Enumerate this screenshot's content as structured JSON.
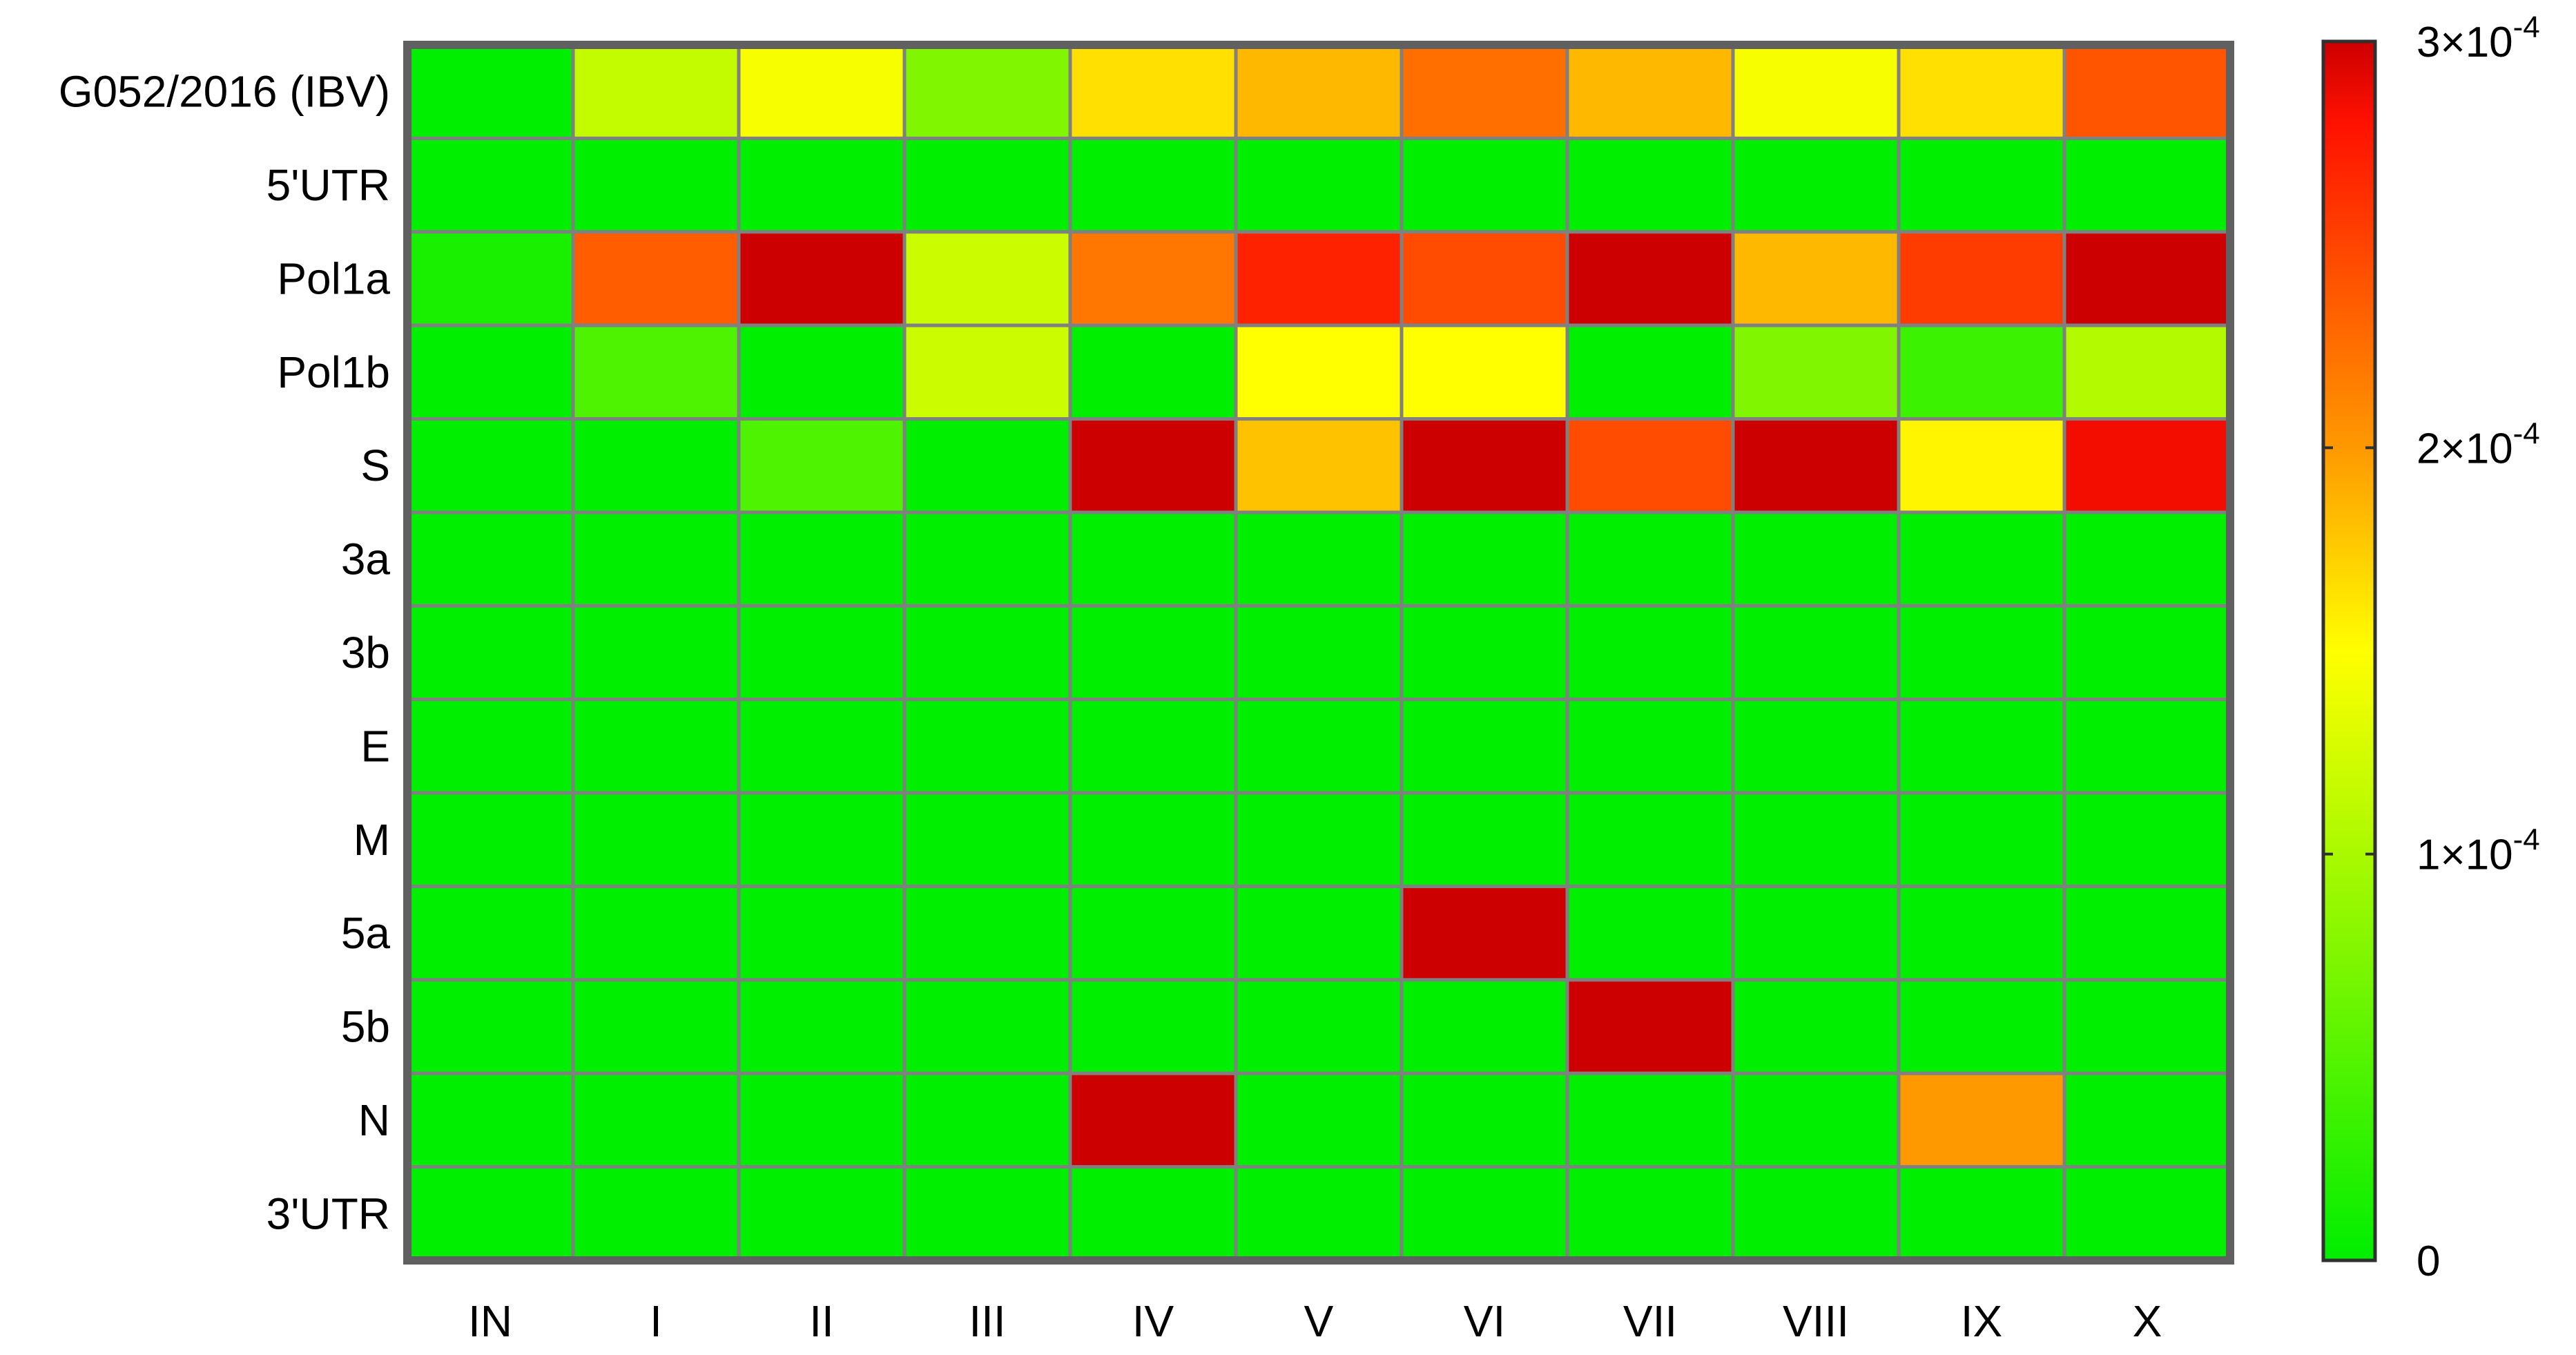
{
  "chart_data": {
    "type": "heatmap",
    "title": "",
    "xlabel": "",
    "ylabel": "",
    "x_categories": [
      "IN",
      "I",
      "II",
      "III",
      "IV",
      "V",
      "VI",
      "VII",
      "VIII",
      "IX",
      "X"
    ],
    "y_categories": [
      "G052/2016 (IBV)",
      "5'UTR",
      "Pol1a",
      "Pol1b",
      "S",
      "3a",
      "3b",
      "E",
      "M",
      "5a",
      "5b",
      "N",
      "3'UTR"
    ],
    "values_unit_scale": 0.0001,
    "values": [
      [
        0.0,
        1.15,
        1.45,
        0.75,
        1.65,
        1.85,
        2.25,
        1.85,
        1.45,
        1.65,
        2.4
      ],
      [
        0.0,
        0.0,
        0.0,
        0.0,
        0.0,
        0.0,
        0.0,
        0.0,
        0.0,
        0.0,
        0.0
      ],
      [
        0.15,
        2.35,
        3.0,
        1.2,
        2.2,
        2.7,
        2.45,
        3.0,
        1.85,
        2.55,
        3.0
      ],
      [
        0.0,
        0.45,
        0.0,
        1.2,
        0.0,
        1.5,
        1.5,
        0.0,
        0.75,
        0.35,
        1.05
      ],
      [
        0.0,
        0.0,
        0.45,
        0.0,
        3.0,
        1.8,
        3.0,
        2.45,
        3.0,
        1.55,
        2.85
      ],
      [
        0.0,
        0.0,
        0.0,
        0.0,
        0.0,
        0.0,
        0.0,
        0.0,
        0.0,
        0.0,
        0.0
      ],
      [
        0.0,
        0.0,
        0.0,
        0.0,
        0.0,
        0.0,
        0.0,
        0.0,
        0.0,
        0.0,
        0.0
      ],
      [
        0.0,
        0.0,
        0.0,
        0.0,
        0.0,
        0.0,
        0.0,
        0.0,
        0.0,
        0.0,
        0.0
      ],
      [
        0.0,
        0.0,
        0.0,
        0.0,
        0.0,
        0.0,
        0.0,
        0.0,
        0.0,
        0.0,
        0.0
      ],
      [
        0.0,
        0.0,
        0.0,
        0.0,
        0.0,
        0.0,
        3.0,
        0.0,
        0.0,
        0.0,
        0.0
      ],
      [
        0.0,
        0.0,
        0.0,
        0.0,
        0.0,
        0.0,
        0.0,
        3.0,
        0.0,
        0.0,
        0.0
      ],
      [
        0.0,
        0.0,
        0.0,
        0.0,
        3.0,
        0.0,
        0.0,
        0.0,
        0.0,
        2.0,
        0.0
      ],
      [
        0.0,
        0.0,
        0.0,
        0.0,
        0.0,
        0.0,
        0.0,
        0.0,
        0.0,
        0.0,
        0.0
      ]
    ],
    "colorbar": {
      "min": 0,
      "max": 3,
      "ticks": [
        {
          "value": 0,
          "base": "0",
          "exp": ""
        },
        {
          "value": 1,
          "base": "1×10",
          "exp": "-4"
        },
        {
          "value": 2,
          "base": "2×10",
          "exp": "-4"
        },
        {
          "value": 3,
          "base": "3×10",
          "exp": "-4"
        }
      ],
      "colors": [
        "#00ee00",
        "#ffff00",
        "#ff9900",
        "#ff1100",
        "#cc0000"
      ],
      "color_stops": [
        0,
        1.5,
        2.0,
        2.8,
        3.0
      ]
    },
    "grid": true,
    "legend": "right",
    "colors": {
      "cell_border": "#808080",
      "plot_frame": "#606060",
      "colorbar_frame": "#303030"
    }
  }
}
